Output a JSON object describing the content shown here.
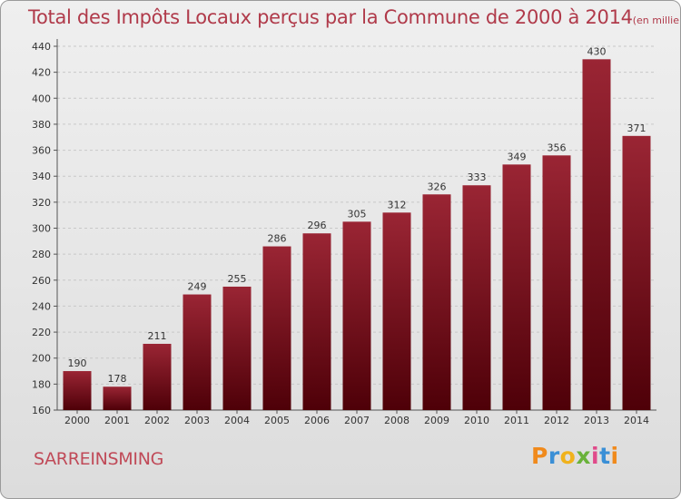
{
  "chart_data": {
    "type": "bar",
    "title": "Total des Impôts Locaux perçus par la Commune de 2000 à 2014",
    "unit": "(en milliers d'€)",
    "categories": [
      "2000",
      "2001",
      "2002",
      "2003",
      "2004",
      "2005",
      "2006",
      "2007",
      "2008",
      "2009",
      "2010",
      "2011",
      "2012",
      "2013",
      "2014"
    ],
    "values": [
      190,
      178,
      211,
      249,
      255,
      286,
      296,
      305,
      312,
      326,
      333,
      349,
      356,
      430,
      371
    ],
    "ylim": [
      160,
      440
    ],
    "yticks": [
      160,
      180,
      200,
      220,
      240,
      260,
      280,
      300,
      320,
      340,
      360,
      380,
      400,
      420,
      440
    ],
    "xlabel": "",
    "ylabel": "",
    "grid": true,
    "bar_color": "#7a0f1c"
  },
  "commune": "SARREINSMING",
  "logo": {
    "letters": [
      "P",
      "r",
      "o",
      "x",
      "i",
      "t",
      "i"
    ],
    "colors": [
      "#f08a1c",
      "#3a8fd6",
      "#f0b21c",
      "#6ab23a",
      "#e04a8a",
      "#3a8fd6",
      "#f08a1c"
    ]
  }
}
